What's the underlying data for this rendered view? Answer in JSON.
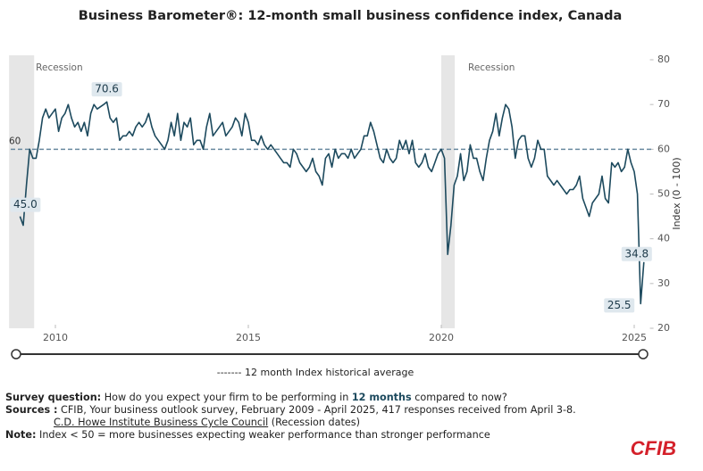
{
  "chart_data": {
    "type": "line",
    "title": "Business Barometer®: 12-month small business confidence index, Canada",
    "y_label": "Index (0 - 100)",
    "xlim": [
      2009,
      2025.5
    ],
    "xticks": [
      2010,
      2015,
      2020,
      2025
    ],
    "ylim": [
      20,
      80
    ],
    "yticks": [
      20,
      30,
      40,
      50,
      60,
      70,
      80
    ],
    "reference_line": {
      "value": 60,
      "label": "60",
      "legend": "------- 12 month Index historical average",
      "color": "#6a8aa0"
    },
    "recessions": [
      {
        "label": "Recession",
        "start": 2008.8,
        "end": 2009.45
      },
      {
        "label": "Recession",
        "start": 2020.0,
        "end": 2020.35
      }
    ],
    "series": [
      {
        "name": "12-month index",
        "color": "#1d4a5e",
        "x": [
          2009.083,
          2009.167,
          2009.25,
          2009.333,
          2009.417,
          2009.5,
          2009.583,
          2009.667,
          2009.75,
          2009.833,
          2009.917,
          2010,
          2010.083,
          2010.167,
          2010.25,
          2010.333,
          2010.417,
          2010.5,
          2010.583,
          2010.667,
          2010.75,
          2010.833,
          2010.917,
          2011,
          2011.083,
          2011.167,
          2011.25,
          2011.333,
          2011.417,
          2011.5,
          2011.583,
          2011.667,
          2011.75,
          2011.833,
          2011.917,
          2012,
          2012.083,
          2012.167,
          2012.25,
          2012.333,
          2012.417,
          2012.5,
          2012.583,
          2012.667,
          2012.75,
          2012.833,
          2012.917,
          2013,
          2013.083,
          2013.167,
          2013.25,
          2013.333,
          2013.417,
          2013.5,
          2013.583,
          2013.667,
          2013.75,
          2013.833,
          2013.917,
          2014,
          2014.083,
          2014.167,
          2014.25,
          2014.333,
          2014.417,
          2014.5,
          2014.583,
          2014.667,
          2014.75,
          2014.833,
          2014.917,
          2015,
          2015.083,
          2015.167,
          2015.25,
          2015.333,
          2015.417,
          2015.5,
          2015.583,
          2015.667,
          2015.75,
          2015.833,
          2015.917,
          2016,
          2016.083,
          2016.167,
          2016.25,
          2016.333,
          2016.417,
          2016.5,
          2016.583,
          2016.667,
          2016.75,
          2016.833,
          2016.917,
          2017,
          2017.083,
          2017.167,
          2017.25,
          2017.333,
          2017.417,
          2017.5,
          2017.583,
          2017.667,
          2017.75,
          2017.833,
          2017.917,
          2018,
          2018.083,
          2018.167,
          2018.25,
          2018.333,
          2018.417,
          2018.5,
          2018.583,
          2018.667,
          2018.75,
          2018.833,
          2018.917,
          2019,
          2019.083,
          2019.167,
          2019.25,
          2019.333,
          2019.417,
          2019.5,
          2019.583,
          2019.667,
          2019.75,
          2019.833,
          2019.917,
          2020,
          2020.083,
          2020.167,
          2020.25,
          2020.333,
          2020.417,
          2020.5,
          2020.583,
          2020.667,
          2020.75,
          2020.833,
          2020.917,
          2021,
          2021.083,
          2021.167,
          2021.25,
          2021.333,
          2021.417,
          2021.5,
          2021.583,
          2021.667,
          2021.75,
          2021.833,
          2021.917,
          2022,
          2022.083,
          2022.167,
          2022.25,
          2022.333,
          2022.417,
          2022.5,
          2022.583,
          2022.667,
          2022.75,
          2022.833,
          2022.917,
          2023,
          2023.083,
          2023.167,
          2023.25,
          2023.333,
          2023.417,
          2023.5,
          2023.583,
          2023.667,
          2023.75,
          2023.833,
          2023.917,
          2024,
          2024.083,
          2024.167,
          2024.25,
          2024.333,
          2024.417,
          2024.5,
          2024.583,
          2024.667,
          2024.75,
          2024.833,
          2024.917,
          2025,
          2025.083,
          2025.167,
          2025.25
        ],
        "values": [
          45.0,
          43,
          52,
          60,
          58,
          58,
          62,
          67,
          69,
          67,
          68,
          69,
          64,
          67,
          68,
          70,
          67,
          65,
          66,
          64,
          66,
          63,
          68,
          70,
          69,
          69.5,
          70,
          70.6,
          67,
          66,
          67,
          62,
          63,
          63,
          64,
          63,
          65,
          66,
          65,
          66,
          68,
          65,
          63,
          62,
          61,
          60,
          62,
          66,
          63,
          68,
          62,
          66,
          65,
          67,
          61,
          62,
          62,
          60,
          65,
          68,
          63,
          64,
          65,
          66,
          63,
          64,
          65,
          67,
          66,
          63,
          68,
          66,
          62,
          62,
          61,
          63,
          61,
          60,
          61,
          60,
          59,
          58,
          57,
          57,
          56,
          60,
          59,
          57,
          56,
          55,
          56,
          58,
          55,
          54,
          52,
          58,
          59,
          56,
          60,
          58,
          59,
          59,
          58,
          60,
          58,
          59,
          60,
          63,
          63,
          66,
          64,
          61,
          58,
          57,
          60,
          58,
          57,
          58,
          62,
          60,
          62,
          59,
          62,
          57,
          56,
          57,
          59,
          56,
          55,
          57,
          59,
          60,
          58,
          36.5,
          43,
          52,
          54,
          59,
          53,
          55,
          61,
          58,
          58,
          55,
          53,
          58,
          62,
          64,
          68,
          63,
          67,
          70,
          69,
          65,
          58,
          62,
          63,
          63,
          58,
          56,
          58,
          62,
          60,
          60,
          54,
          53,
          52,
          53,
          52,
          51,
          50,
          51,
          51,
          52,
          54,
          49,
          47,
          45,
          48,
          49,
          50,
          54,
          49,
          48,
          57,
          56,
          57,
          55,
          56,
          60,
          57,
          55,
          50,
          25.5,
          34.8
        ],
        "value_labels": [
          "45.0",
          null,
          null,
          null,
          null,
          null,
          null,
          null,
          null,
          null,
          null,
          null,
          null,
          null,
          null,
          null,
          null,
          null,
          null,
          null,
          null,
          null,
          null,
          null,
          null,
          null,
          null,
          "70.6",
          null,
          null,
          null,
          null,
          null,
          null,
          null,
          null,
          null,
          null,
          null,
          null,
          null,
          null,
          null,
          null,
          null,
          null,
          null,
          null,
          null,
          null,
          null,
          null,
          null,
          null,
          null,
          null,
          null,
          null,
          null,
          null,
          null,
          null,
          null,
          null,
          null,
          null,
          null,
          null,
          null,
          null,
          null,
          null,
          null,
          null,
          null,
          null,
          null,
          null,
          null,
          null,
          null,
          null,
          null,
          null,
          null,
          null,
          null,
          null,
          null,
          null,
          null,
          null,
          null,
          null,
          null,
          null,
          null,
          null,
          null,
          null,
          null,
          null,
          null,
          null,
          null,
          null,
          null,
          null,
          null,
          null,
          null,
          null,
          null,
          null,
          null,
          null,
          null,
          null,
          null,
          null,
          null,
          null,
          null,
          null,
          null,
          null,
          null,
          null,
          null,
          null,
          null,
          null,
          null,
          null,
          null,
          null,
          null,
          null,
          null,
          null,
          null,
          null,
          null,
          null,
          null,
          null,
          null,
          null,
          null,
          null,
          null,
          null,
          null,
          null,
          null,
          null,
          null,
          null,
          null,
          null,
          null,
          null,
          null,
          null,
          null,
          null,
          null,
          null,
          null,
          null,
          null,
          null,
          null,
          null,
          null,
          null,
          null,
          null,
          null,
          null,
          null,
          null,
          null,
          null,
          null,
          null,
          null,
          null,
          null,
          null,
          null,
          null,
          null,
          "25.5",
          "34.8"
        ]
      }
    ]
  },
  "footer": {
    "question_label": "Survey question:",
    "question_a": " How do you expect your firm to be performing in ",
    "question_em": "12 months",
    "question_b": " compared to now?",
    "sources_label": "Sources :",
    "sources": " CFIB, Your business outlook survey, February 2009 - April 2025, 417 responses received from April 3-8.",
    "sources_link": "C.D. Howe Institute Business Cycle Council",
    "sources_link_note": " (Recession dates)",
    "note_label": "Note:",
    "note": " Index < 50 = more businesses expecting weaker performance than stronger performance",
    "logo": "CFIB"
  }
}
